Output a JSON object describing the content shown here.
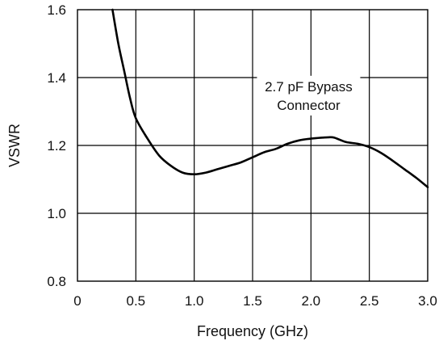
{
  "chart_data": {
    "type": "line",
    "title": "",
    "xlabel": "Frequency (GHz)",
    "ylabel": "VSWR",
    "xlim": [
      0,
      3.0
    ],
    "ylim": [
      0.8,
      1.6
    ],
    "x_ticks": [
      "0",
      "0.5",
      "1.0",
      "1.5",
      "2.0",
      "2.5",
      "3.0"
    ],
    "y_ticks": [
      "0.8",
      "1.0",
      "1.2",
      "1.4",
      "1.6"
    ],
    "grid": true,
    "annotation": [
      "2.7 pF Bypass",
      "Connector"
    ],
    "series": [
      {
        "x": [
          0.3,
          0.35,
          0.4,
          0.45,
          0.5,
          0.6,
          0.7,
          0.8,
          0.9,
          1.0,
          1.1,
          1.2,
          1.3,
          1.4,
          1.5,
          1.6,
          1.7,
          1.8,
          1.9,
          2.0,
          2.1,
          2.15,
          2.2,
          2.3,
          2.4,
          2.5,
          2.6,
          2.7,
          2.8,
          2.9,
          3.0
        ],
        "y": [
          1.6,
          1.5,
          1.42,
          1.34,
          1.28,
          1.22,
          1.17,
          1.14,
          1.12,
          1.115,
          1.12,
          1.13,
          1.14,
          1.15,
          1.165,
          1.18,
          1.19,
          1.205,
          1.215,
          1.22,
          1.223,
          1.224,
          1.223,
          1.21,
          1.205,
          1.195,
          1.178,
          1.155,
          1.13,
          1.105,
          1.077
        ]
      }
    ]
  }
}
